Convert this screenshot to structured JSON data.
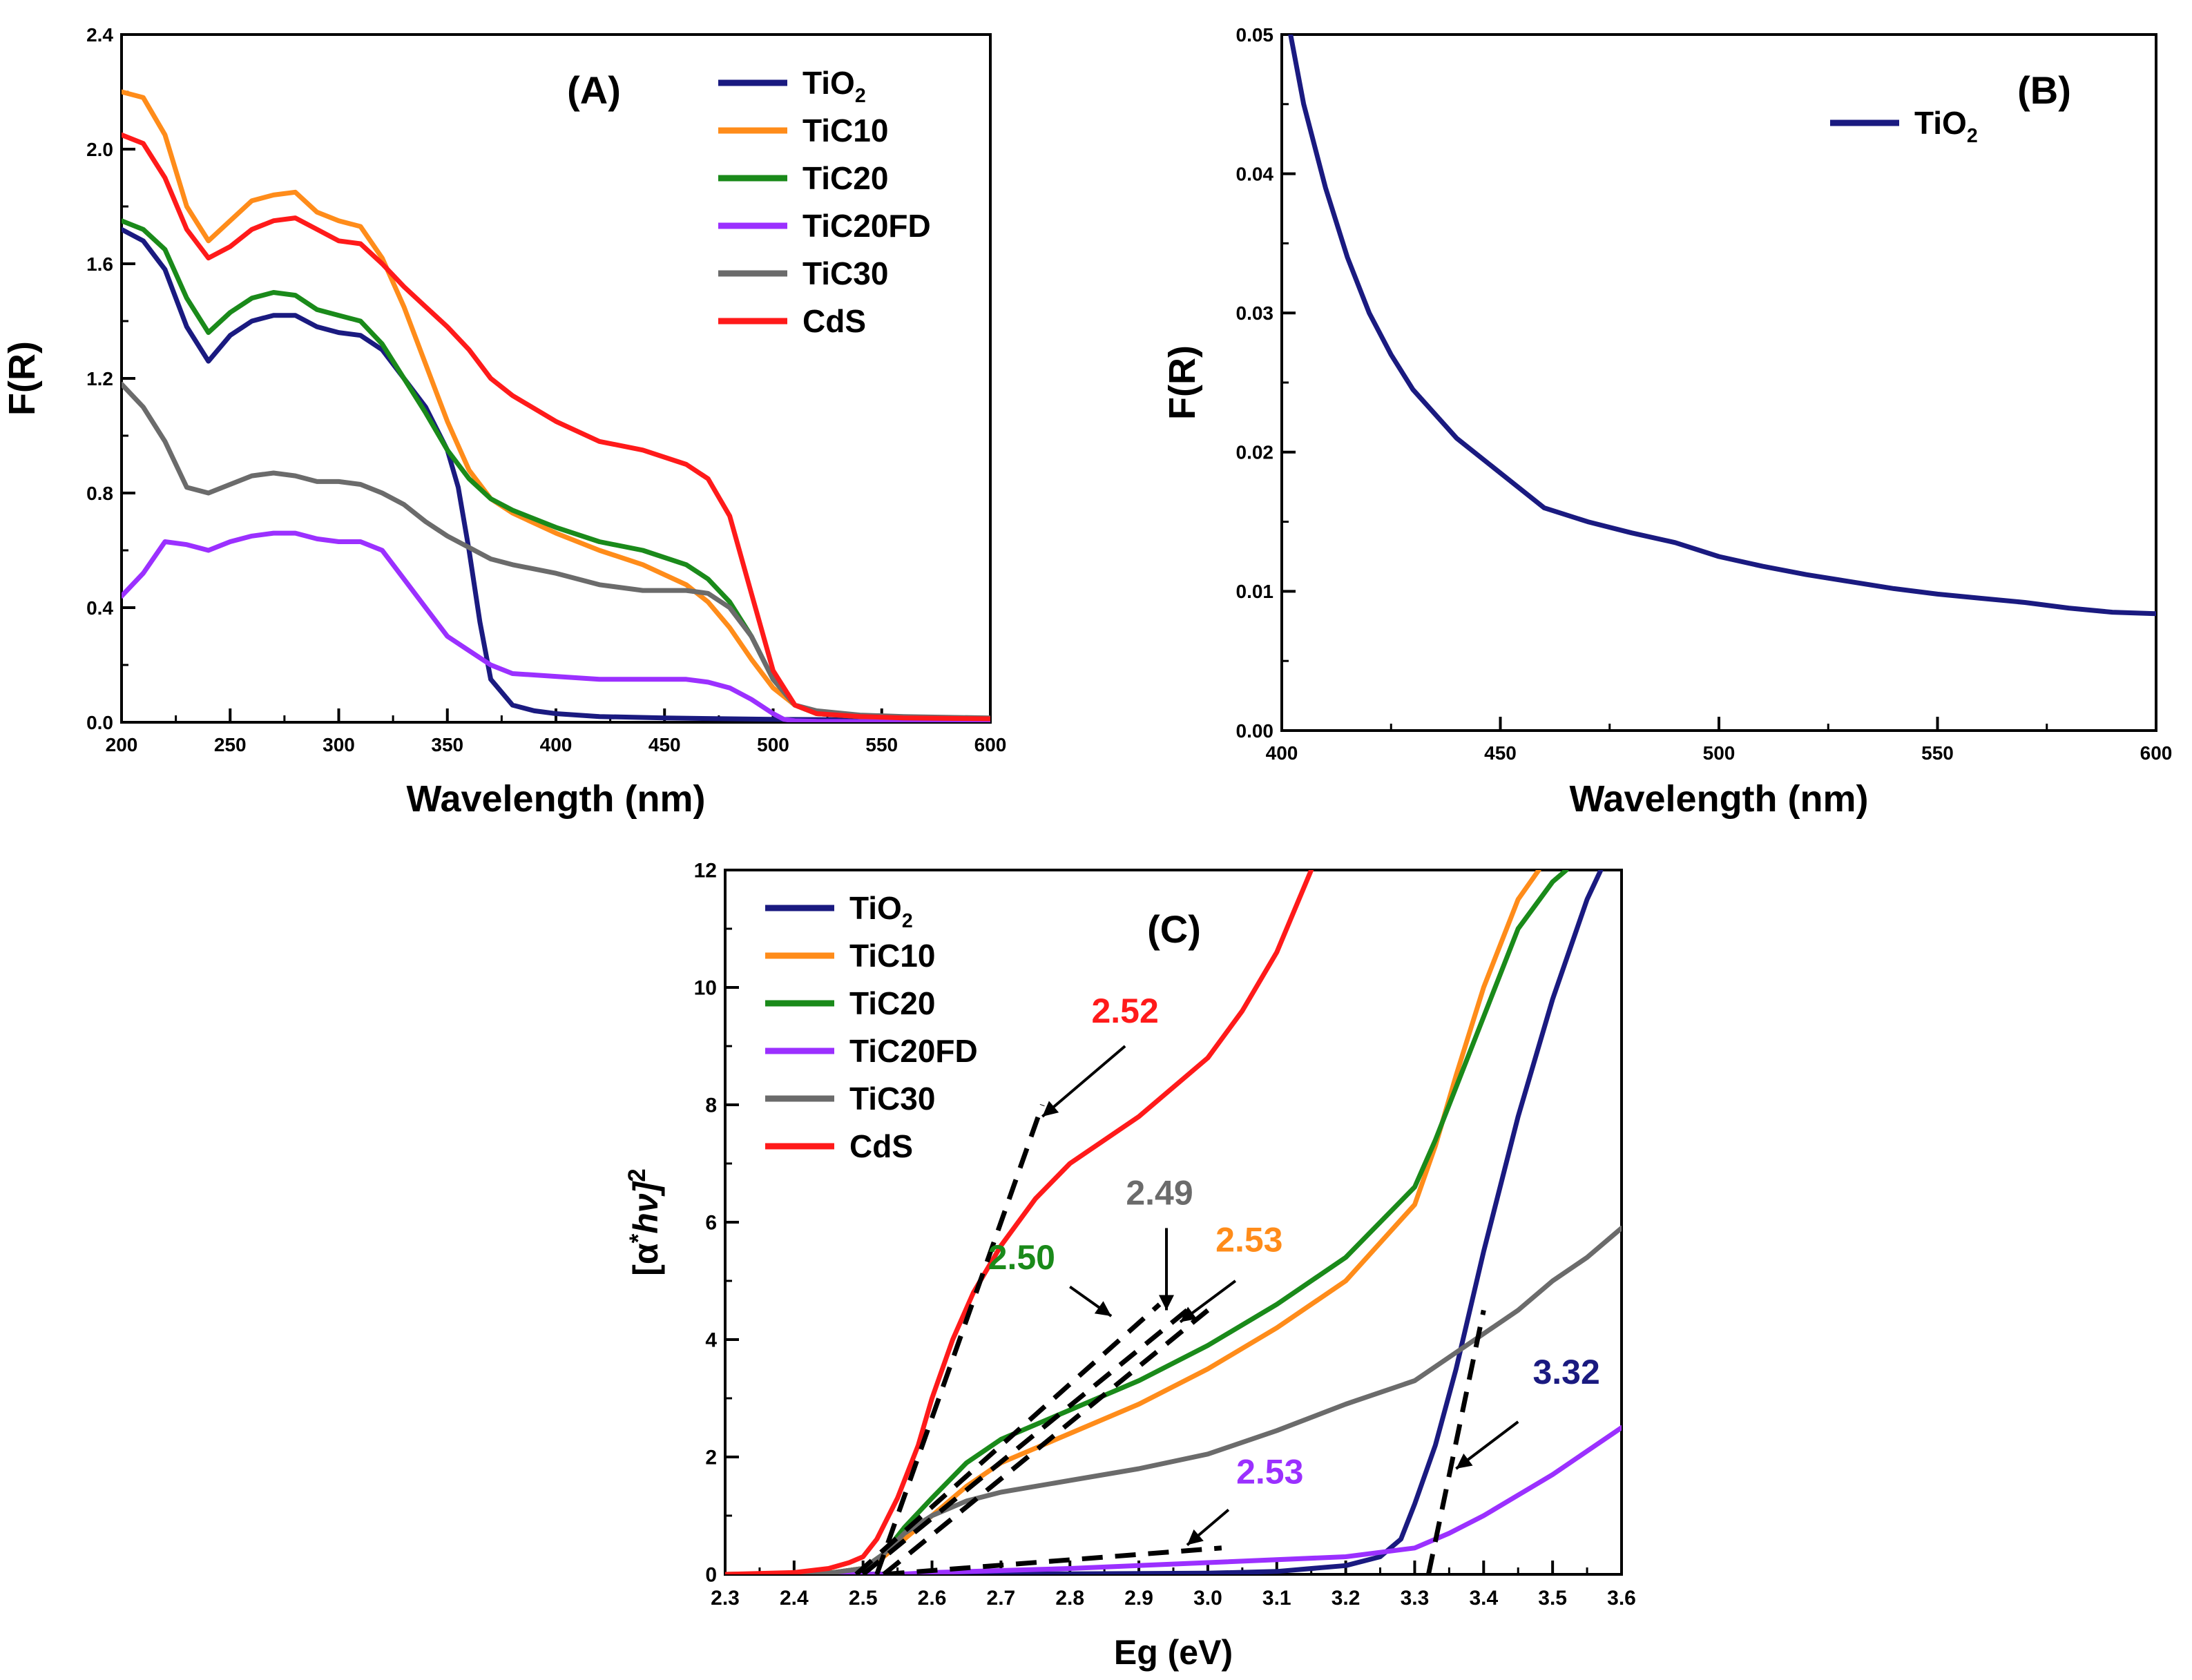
{
  "colors": {
    "TiO2": "#1a1a80",
    "TiC10": "#ff8c1a",
    "TiC20": "#1a8a1a",
    "TiC20FD": "#9b30ff",
    "TiC30": "#6b6b6b",
    "CdS": "#ff1a1a"
  },
  "chart_data": [
    {
      "type": "line",
      "panel": "(A)",
      "xlabel": "Wavelength (nm)",
      "ylabel": "F(R)",
      "xlim": [
        200,
        600
      ],
      "ylim": [
        0.0,
        2.4
      ],
      "xticks": [
        "200",
        "250",
        "300",
        "350",
        "400",
        "450",
        "500",
        "550",
        "600"
      ],
      "yticks": [
        "0.0",
        "0.4",
        "0.8",
        "1.2",
        "1.6",
        "2.0",
        "2.4"
      ],
      "legend": [
        {
          "name": "TiO",
          "sub": "2",
          "key": "TiO2"
        },
        {
          "name": "TiC10",
          "sub": "",
          "key": "TiC10"
        },
        {
          "name": "TiC20",
          "sub": "",
          "key": "TiC20"
        },
        {
          "name": "TiC20FD",
          "sub": "",
          "key": "TiC20FD"
        },
        {
          "name": "TiC30",
          "sub": "",
          "key": "TiC30"
        },
        {
          "name": "CdS",
          "sub": "",
          "key": "CdS"
        }
      ],
      "series": [
        {
          "key": "TiO2",
          "x": [
            200,
            210,
            220,
            230,
            240,
            250,
            260,
            270,
            280,
            290,
            300,
            310,
            320,
            330,
            340,
            350,
            355,
            360,
            365,
            370,
            380,
            390,
            400,
            420,
            450,
            500,
            550,
            600
          ],
          "y": [
            1.72,
            1.68,
            1.58,
            1.38,
            1.26,
            1.35,
            1.4,
            1.42,
            1.42,
            1.38,
            1.36,
            1.35,
            1.3,
            1.2,
            1.1,
            0.95,
            0.82,
            0.6,
            0.35,
            0.15,
            0.06,
            0.04,
            0.03,
            0.02,
            0.015,
            0.01,
            0.008,
            0.008
          ]
        },
        {
          "key": "TiC10",
          "x": [
            200,
            210,
            220,
            230,
            240,
            250,
            260,
            270,
            280,
            290,
            300,
            310,
            320,
            330,
            340,
            350,
            360,
            370,
            380,
            400,
            420,
            440,
            460,
            470,
            480,
            490,
            500,
            510,
            520,
            540,
            560,
            600
          ],
          "y": [
            2.2,
            2.18,
            2.05,
            1.8,
            1.68,
            1.75,
            1.82,
            1.84,
            1.85,
            1.78,
            1.75,
            1.73,
            1.62,
            1.45,
            1.25,
            1.05,
            0.88,
            0.78,
            0.73,
            0.66,
            0.6,
            0.55,
            0.48,
            0.42,
            0.33,
            0.22,
            0.12,
            0.06,
            0.03,
            0.02,
            0.015,
            0.012
          ]
        },
        {
          "key": "TiC20",
          "x": [
            200,
            210,
            220,
            230,
            240,
            250,
            260,
            270,
            280,
            290,
            300,
            310,
            320,
            330,
            340,
            350,
            360,
            370,
            380,
            400,
            420,
            440,
            460,
            470,
            480,
            490,
            500,
            510,
            520,
            540,
            560,
            600
          ],
          "y": [
            1.75,
            1.72,
            1.65,
            1.48,
            1.36,
            1.43,
            1.48,
            1.5,
            1.49,
            1.44,
            1.42,
            1.4,
            1.32,
            1.2,
            1.08,
            0.95,
            0.85,
            0.78,
            0.74,
            0.68,
            0.63,
            0.6,
            0.55,
            0.5,
            0.42,
            0.3,
            0.15,
            0.06,
            0.03,
            0.02,
            0.015,
            0.012
          ]
        },
        {
          "key": "TiC20FD",
          "x": [
            200,
            210,
            220,
            230,
            240,
            250,
            260,
            270,
            280,
            290,
            300,
            310,
            320,
            330,
            340,
            350,
            360,
            370,
            380,
            400,
            420,
            440,
            460,
            470,
            480,
            490,
            500,
            505,
            510,
            520,
            560,
            600
          ],
          "y": [
            0.44,
            0.52,
            0.63,
            0.62,
            0.6,
            0.63,
            0.65,
            0.66,
            0.66,
            0.64,
            0.63,
            0.63,
            0.6,
            0.5,
            0.4,
            0.3,
            0.25,
            0.2,
            0.17,
            0.16,
            0.15,
            0.15,
            0.15,
            0.14,
            0.12,
            0.08,
            0.03,
            0.01,
            0.005,
            0.003,
            0.002,
            0.002
          ]
        },
        {
          "key": "TiC30",
          "x": [
            200,
            210,
            220,
            230,
            240,
            250,
            260,
            270,
            280,
            290,
            300,
            310,
            320,
            330,
            340,
            350,
            360,
            370,
            380,
            400,
            420,
            440,
            460,
            470,
            480,
            490,
            500,
            510,
            520,
            540,
            560,
            600
          ],
          "y": [
            1.18,
            1.1,
            0.98,
            0.82,
            0.8,
            0.83,
            0.86,
            0.87,
            0.86,
            0.84,
            0.84,
            0.83,
            0.8,
            0.76,
            0.7,
            0.65,
            0.61,
            0.57,
            0.55,
            0.52,
            0.48,
            0.46,
            0.46,
            0.45,
            0.4,
            0.3,
            0.15,
            0.06,
            0.04,
            0.025,
            0.02,
            0.015
          ]
        },
        {
          "key": "CdS",
          "x": [
            200,
            210,
            220,
            230,
            240,
            250,
            260,
            270,
            280,
            290,
            300,
            310,
            320,
            330,
            340,
            350,
            360,
            370,
            380,
            400,
            420,
            440,
            460,
            470,
            480,
            490,
            500,
            510,
            520,
            540,
            560,
            600
          ],
          "y": [
            2.05,
            2.02,
            1.9,
            1.72,
            1.62,
            1.66,
            1.72,
            1.75,
            1.76,
            1.72,
            1.68,
            1.67,
            1.6,
            1.52,
            1.45,
            1.38,
            1.3,
            1.2,
            1.14,
            1.05,
            0.98,
            0.95,
            0.9,
            0.85,
            0.72,
            0.45,
            0.18,
            0.06,
            0.03,
            0.02,
            0.015,
            0.012
          ]
        }
      ]
    },
    {
      "type": "line",
      "panel": "(B)",
      "xlabel": "Wavelength (nm)",
      "ylabel": "F(R)",
      "xlim": [
        400,
        600
      ],
      "ylim": [
        0.0,
        0.05
      ],
      "xticks": [
        "400",
        "450",
        "500",
        "550",
        "600"
      ],
      "yticks": [
        "0.00",
        "0.01",
        "0.02",
        "0.03",
        "0.04",
        "0.05"
      ],
      "legend": [
        {
          "name": "TiO",
          "sub": "2",
          "key": "TiO2"
        }
      ],
      "series": [
        {
          "key": "TiO2",
          "x": [
            402,
            405,
            410,
            415,
            420,
            425,
            430,
            440,
            450,
            460,
            470,
            480,
            490,
            500,
            510,
            520,
            530,
            540,
            550,
            560,
            570,
            580,
            590,
            600
          ],
          "y": [
            0.05,
            0.045,
            0.039,
            0.034,
            0.03,
            0.027,
            0.0245,
            0.021,
            0.0185,
            0.016,
            0.015,
            0.0142,
            0.0135,
            0.0125,
            0.0118,
            0.0112,
            0.0107,
            0.0102,
            0.0098,
            0.0095,
            0.0092,
            0.0088,
            0.0085,
            0.0084
          ]
        }
      ]
    },
    {
      "type": "line",
      "panel": "(C)",
      "xlabel": "Eg (eV)",
      "ylabel_parts": [
        "[α",
        "*",
        "hν]",
        "2"
      ],
      "xlim": [
        2.3,
        3.6
      ],
      "ylim": [
        0,
        12
      ],
      "xticks": [
        "2.3",
        "2.4",
        "2.5",
        "2.6",
        "2.7",
        "2.8",
        "2.9",
        "3.0",
        "3.1",
        "3.2",
        "3.3",
        "3.4",
        "3.5",
        "3.6"
      ],
      "yticks": [
        "0",
        "2",
        "4",
        "6",
        "8",
        "10",
        "12"
      ],
      "legend": [
        {
          "name": "TiO",
          "sub": "2",
          "key": "TiO2"
        },
        {
          "name": "TiC10",
          "sub": "",
          "key": "TiC10"
        },
        {
          "name": "TiC20",
          "sub": "",
          "key": "TiC20"
        },
        {
          "name": "TiC20FD",
          "sub": "",
          "key": "TiC20FD"
        },
        {
          "name": "TiC30",
          "sub": "",
          "key": "TiC30"
        },
        {
          "name": "CdS",
          "sub": "",
          "key": "CdS"
        }
      ],
      "series": [
        {
          "key": "TiO2",
          "x": [
            2.3,
            2.8,
            3.0,
            3.1,
            3.2,
            3.25,
            3.28,
            3.3,
            3.33,
            3.36,
            3.4,
            3.45,
            3.5,
            3.55,
            3.57
          ],
          "y": [
            0,
            0.01,
            0.02,
            0.05,
            0.15,
            0.3,
            0.6,
            1.2,
            2.2,
            3.5,
            5.5,
            7.8,
            9.8,
            11.5,
            12
          ]
        },
        {
          "key": "TiC10",
          "x": [
            2.3,
            2.45,
            2.5,
            2.53,
            2.56,
            2.6,
            2.65,
            2.7,
            2.8,
            2.9,
            3.0,
            3.1,
            3.2,
            3.3,
            3.33,
            3.36,
            3.4,
            3.45,
            3.48
          ],
          "y": [
            0,
            0.02,
            0.1,
            0.3,
            0.6,
            1.0,
            1.5,
            1.9,
            2.4,
            2.9,
            3.5,
            4.2,
            5.0,
            6.3,
            7.3,
            8.5,
            10.0,
            11.5,
            12
          ]
        },
        {
          "key": "TiC20",
          "x": [
            2.3,
            2.45,
            2.5,
            2.53,
            2.56,
            2.6,
            2.65,
            2.7,
            2.8,
            2.9,
            3.0,
            3.1,
            3.2,
            3.3,
            3.33,
            3.36,
            3.4,
            3.45,
            3.5,
            3.52
          ],
          "y": [
            0,
            0.02,
            0.1,
            0.35,
            0.8,
            1.3,
            1.9,
            2.3,
            2.8,
            3.3,
            3.9,
            4.6,
            5.4,
            6.6,
            7.4,
            8.3,
            9.5,
            11.0,
            11.8,
            12
          ]
        },
        {
          "key": "TiC20FD",
          "x": [
            2.3,
            2.55,
            2.6,
            2.8,
            3.0,
            3.2,
            3.3,
            3.35,
            3.4,
            3.45,
            3.5,
            3.55,
            3.6
          ],
          "y": [
            0,
            0.0,
            0.03,
            0.1,
            0.2,
            0.3,
            0.45,
            0.7,
            1.0,
            1.35,
            1.7,
            2.1,
            2.5
          ]
        },
        {
          "key": "TiC30",
          "x": [
            2.3,
            2.45,
            2.5,
            2.53,
            2.56,
            2.6,
            2.65,
            2.7,
            2.8,
            2.9,
            3.0,
            3.1,
            3.2,
            3.3,
            3.35,
            3.4,
            3.45,
            3.5,
            3.55,
            3.6
          ],
          "y": [
            0,
            0.02,
            0.1,
            0.35,
            0.7,
            1.0,
            1.25,
            1.4,
            1.6,
            1.8,
            2.05,
            2.45,
            2.9,
            3.3,
            3.7,
            4.1,
            4.5,
            5.0,
            5.4,
            5.9
          ]
        },
        {
          "key": "CdS",
          "x": [
            2.3,
            2.4,
            2.45,
            2.48,
            2.5,
            2.52,
            2.55,
            2.58,
            2.6,
            2.63,
            2.66,
            2.7,
            2.75,
            2.8,
            2.9,
            3.0,
            3.05,
            3.1,
            3.15
          ],
          "y": [
            0,
            0.03,
            0.1,
            0.2,
            0.3,
            0.6,
            1.3,
            2.2,
            3.0,
            4.0,
            4.8,
            5.6,
            6.4,
            7.0,
            7.8,
            8.8,
            9.6,
            10.6,
            12
          ]
        }
      ],
      "fit_lines": [
        {
          "key": "CdS",
          "x": [
            2.52,
            2.76
          ],
          "y": [
            0.0,
            8.0
          ]
        },
        {
          "key": "TiC20",
          "x": [
            2.5,
            2.97
          ],
          "y": [
            0.0,
            4.5
          ]
        },
        {
          "key": "TiC30",
          "x": [
            2.49,
            2.93
          ],
          "y": [
            0.0,
            4.6
          ]
        },
        {
          "key": "TiC10",
          "x": [
            2.53,
            3.0
          ],
          "y": [
            0.0,
            4.5
          ]
        },
        {
          "key": "TiC20FD",
          "x": [
            2.53,
            3.02
          ],
          "y": [
            0.0,
            0.45
          ]
        },
        {
          "key": "TiO2",
          "x": [
            3.32,
            3.4
          ],
          "y": [
            0.0,
            4.5
          ]
        }
      ],
      "annotations": [
        {
          "text": "2.52",
          "key": "CdS",
          "tx": 2.88,
          "ty": 9.4,
          "from": [
            2.88,
            9.0
          ],
          "to": [
            2.76,
            7.8
          ]
        },
        {
          "text": "2.50",
          "key": "TiC20",
          "tx": 2.73,
          "ty": 5.2,
          "from": [
            2.8,
            4.9
          ],
          "to": [
            2.86,
            4.4
          ]
        },
        {
          "text": "2.49",
          "key": "TiC30",
          "tx": 2.93,
          "ty": 6.3,
          "from": [
            2.94,
            5.9
          ],
          "to": [
            2.94,
            4.5
          ]
        },
        {
          "text": "2.53",
          "key": "TiC10",
          "tx": 3.06,
          "ty": 5.5,
          "from": [
            3.04,
            5.0
          ],
          "to": [
            2.96,
            4.3
          ]
        },
        {
          "text": "2.53",
          "key": "TiC20FD",
          "tx": 3.09,
          "ty": 1.55,
          "from": [
            3.03,
            1.1
          ],
          "to": [
            2.97,
            0.5
          ]
        },
        {
          "text": "3.32",
          "key": "TiO2",
          "tx": 3.52,
          "ty": 3.25,
          "from": [
            3.45,
            2.6
          ],
          "to": [
            3.36,
            1.8
          ]
        }
      ]
    }
  ]
}
